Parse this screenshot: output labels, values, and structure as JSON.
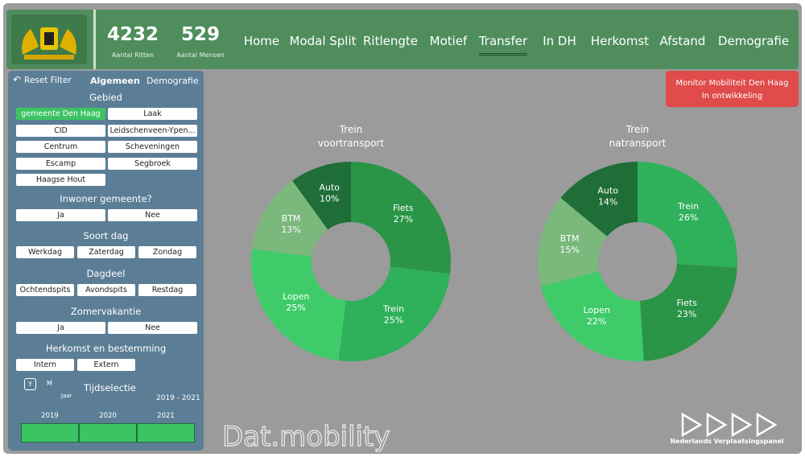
{
  "header": {
    "kpis": [
      {
        "value": 4232,
        "label": "Aantal Ritten"
      },
      {
        "value": 529,
        "label": "Aantal Mensen"
      }
    ],
    "nav": [
      "Home",
      "Modal Split",
      "Ritlengte",
      "Motief",
      "Transfer",
      "In DH",
      "Herkomst",
      "Afstand",
      "Demografie"
    ],
    "selected": "Transfer"
  },
  "sidebar": {
    "reset": "Reset Filter",
    "tabs": [
      "Algemeen",
      "Demografie"
    ],
    "groups": [
      {
        "title": "Gebied",
        "options": [
          "gemeente Den Haag",
          "Laak",
          "CID",
          "Leidschenveen-Ypen...",
          "Centrum",
          "Scheveningen",
          "Escamp",
          "Segbroek",
          "Haagse Hout"
        ],
        "selected": "gemeente Den Haag"
      },
      {
        "title": "Inwoner gemeente?",
        "options": [
          "Ja",
          "Nee"
        ]
      },
      {
        "title": "Soort dag",
        "options": [
          "Werkdag",
          "Zaterdag",
          "Zondag"
        ]
      },
      {
        "title": "Dagdeel",
        "options": [
          "Ochtendspits",
          "Avondspits",
          "Restdag"
        ]
      },
      {
        "title": "Zomervakantie",
        "options": [
          "Ja",
          "Nee"
        ]
      },
      {
        "title": "Herkomst en bestemming",
        "options": [
          "Intern",
          "Extern"
        ]
      }
    ],
    "time": {
      "title": "Tijdselectie",
      "toggle": [
        "Y",
        "M"
      ],
      "unit": "Jaar",
      "range": "2019 - 2021",
      "years": [
        "2019",
        "2020",
        "2021"
      ]
    }
  },
  "notice": [
    "Monitor Mobiliteit Den Haag",
    "In ontwikkeling"
  ],
  "footer": {
    "brand": "Dat.mobility",
    "partner": "Nederlands Verplaatsingspanel"
  },
  "chart_data": [
    {
      "type": "pie",
      "title": "Trein",
      "subtitle": "voortransport",
      "categories": [
        "Fiets",
        "Trein",
        "Lopen",
        "BTM",
        "Auto"
      ],
      "values": [
        27,
        25,
        25,
        13,
        10
      ],
      "value_labels": [
        "27%",
        "25%",
        "25%",
        "13%",
        "10%"
      ],
      "colors": [
        "#2a9447",
        "#2fb05a",
        "#3fcb6a",
        "#7ab87c",
        "#1f6e38"
      ]
    },
    {
      "type": "pie",
      "title": "Trein",
      "subtitle": "natransport",
      "categories": [
        "Trein",
        "Fiets",
        "Lopen",
        "BTM",
        "Auto"
      ],
      "values": [
        26,
        23,
        22,
        15,
        14
      ],
      "value_labels": [
        "26%",
        "23%",
        "22%",
        "15%",
        "14%"
      ],
      "colors": [
        "#2fb05a",
        "#2a9447",
        "#3fcb6a",
        "#7ab87c",
        "#1f6e38"
      ]
    }
  ]
}
